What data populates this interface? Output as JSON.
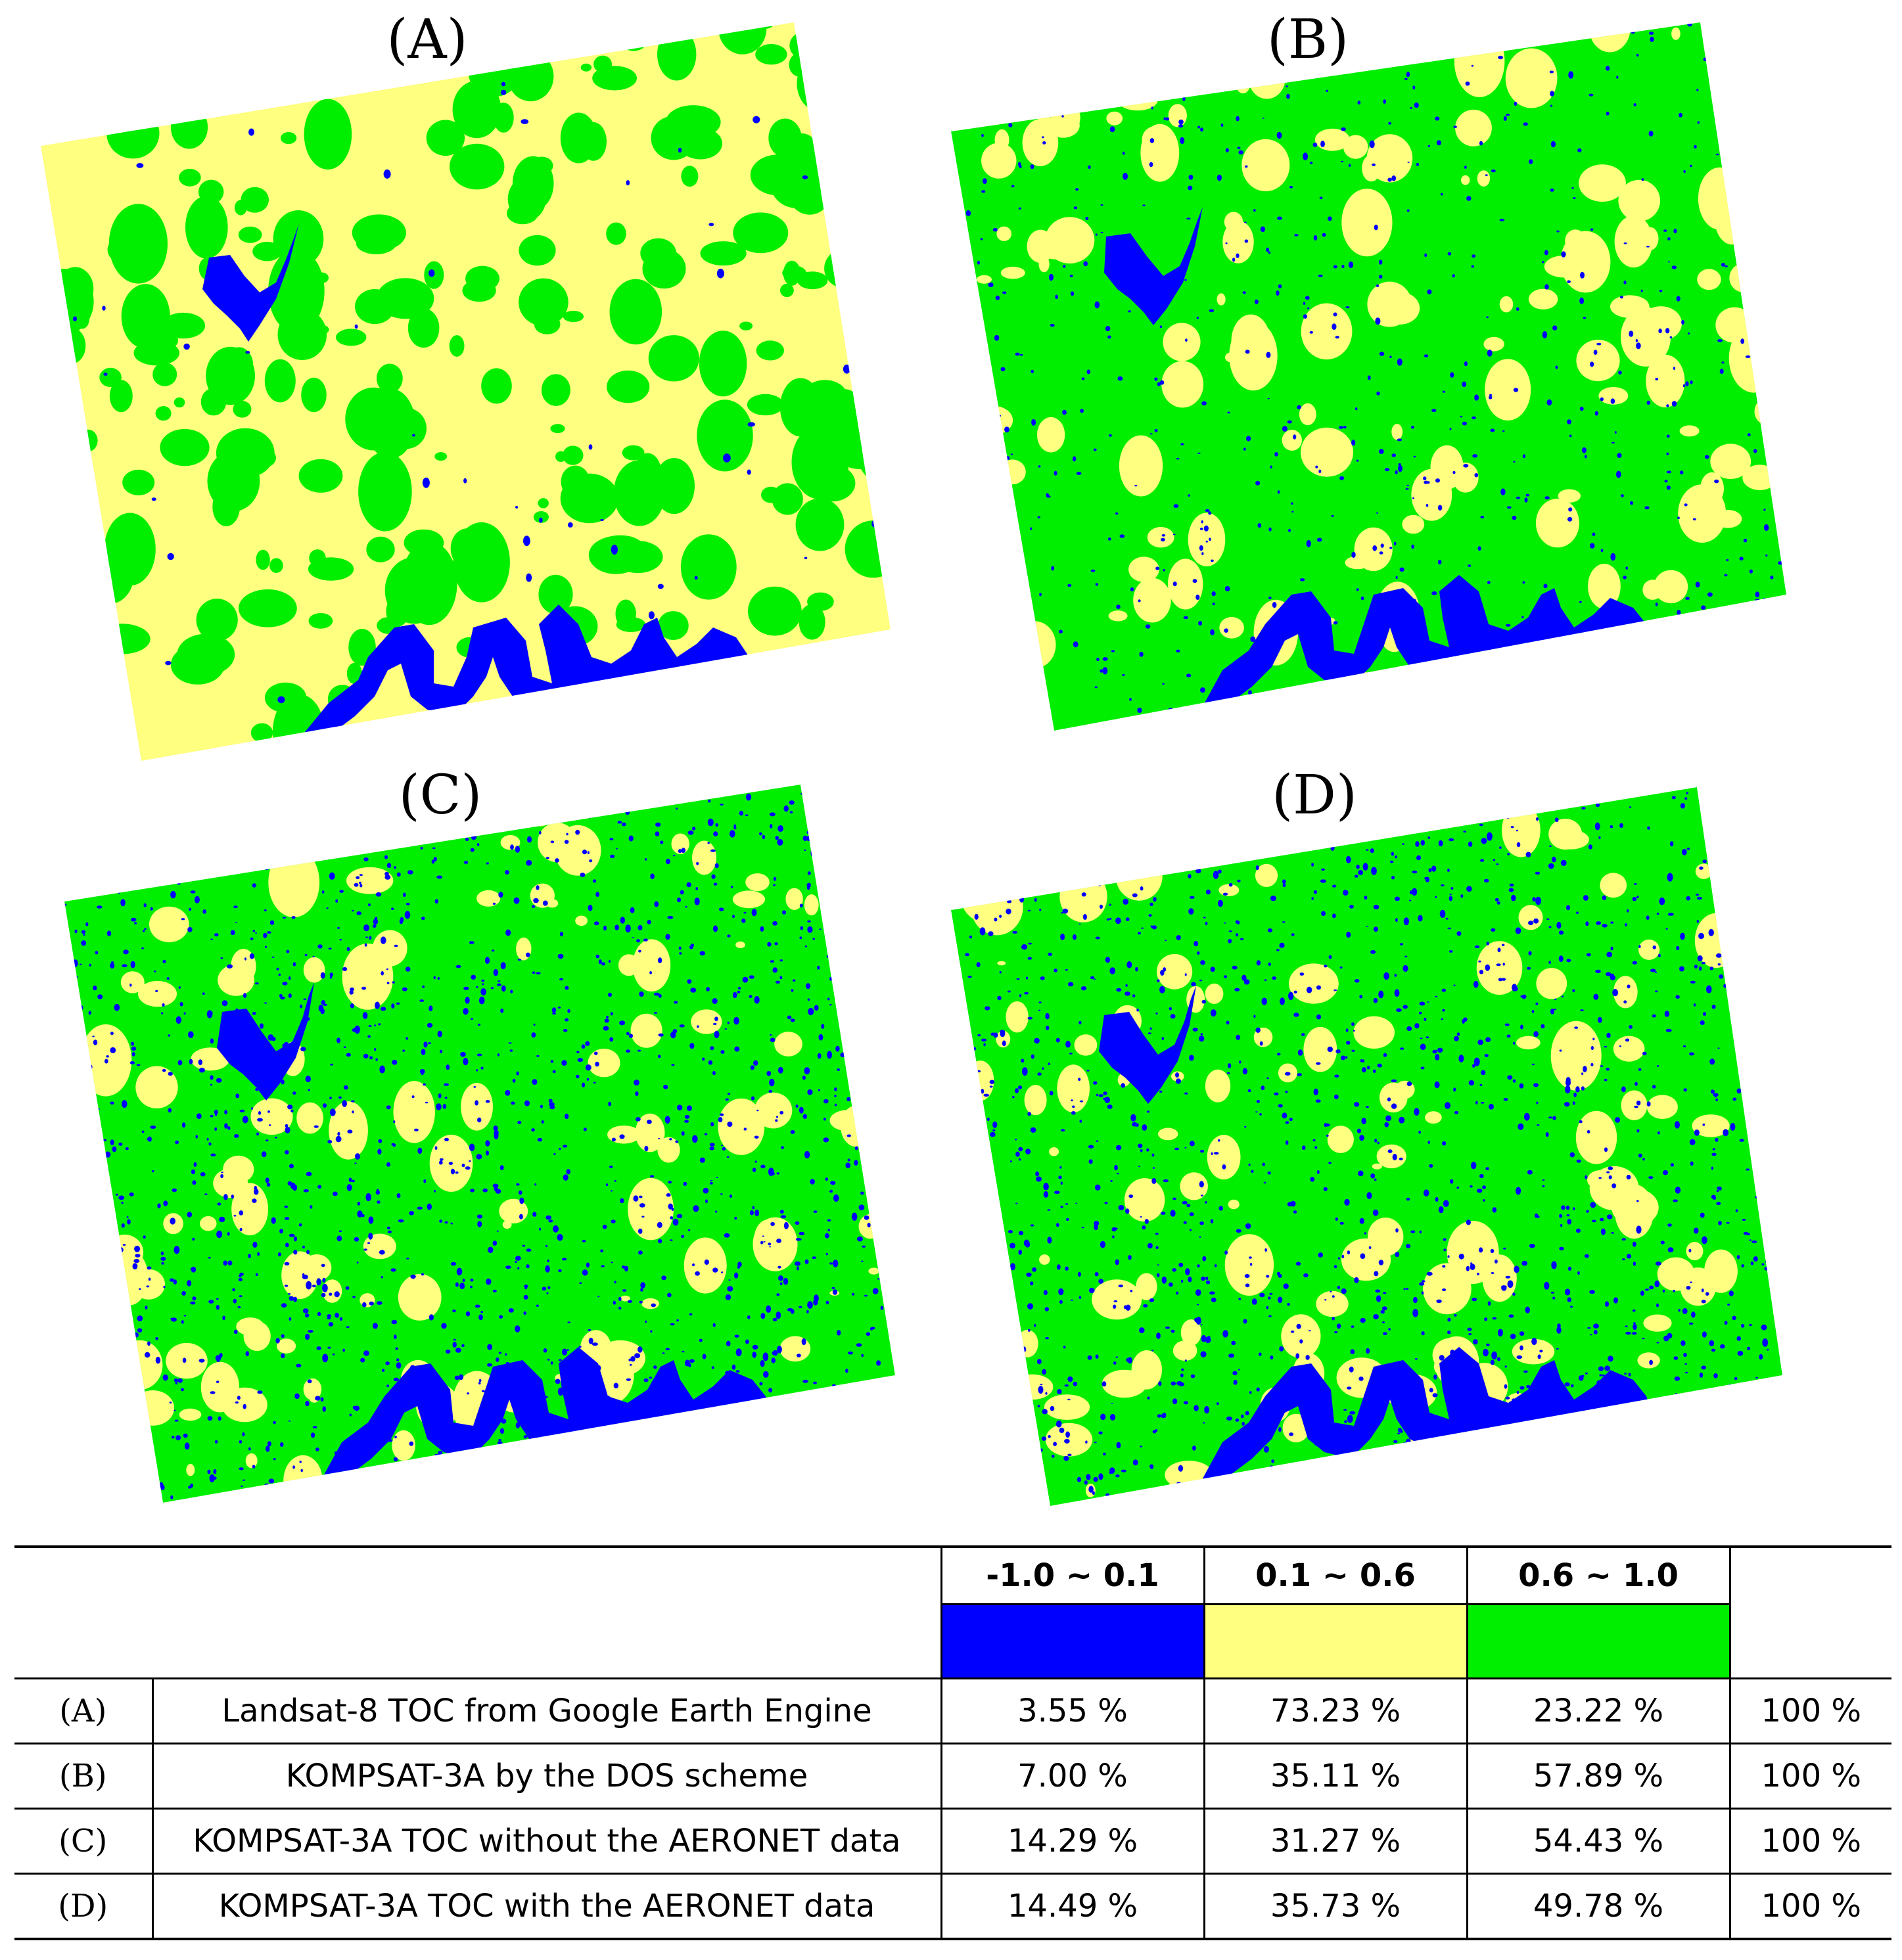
{
  "panels": [
    {
      "id": "A",
      "label": "(A)"
    },
    {
      "id": "B",
      "label": "(B)"
    },
    {
      "id": "C",
      "label": "(C)"
    },
    {
      "id": "D",
      "label": "(D)"
    }
  ],
  "legend": {
    "classes": [
      {
        "range": "-1.0 ~ 0.1",
        "color": "#0000ff"
      },
      {
        "range": "0.1 ~ 0.6",
        "color": "#ffff80"
      },
      {
        "range": "0.6 ~ 1.0",
        "color": "#00ee00"
      }
    ],
    "rows": [
      {
        "id": "(A)",
        "desc": "Landsat-8 TOC from Google Earth Engine",
        "values": [
          "3.55 %",
          "73.23 %",
          "23.22 %"
        ],
        "total": "100 %"
      },
      {
        "id": "(B)",
        "desc": "KOMPSAT-3A by the DOS scheme",
        "values": [
          "7.00 %",
          "35.11 %",
          "57.89 %"
        ],
        "total": "100 %"
      },
      {
        "id": "(C)",
        "desc": "KOMPSAT-3A TOC without the AERONET data",
        "values": [
          "14.29 %",
          "31.27 %",
          "54.43 %"
        ],
        "total": "100 %"
      },
      {
        "id": "(D)",
        "desc": "KOMPSAT-3A TOC with the AERONET data",
        "values": [
          "14.49 %",
          "35.73 %",
          "49.78 %"
        ],
        "total": "100 %"
      }
    ]
  },
  "colors": {
    "water": "#0000ff",
    "yellow": "#ffff80",
    "green": "#00ee00"
  }
}
